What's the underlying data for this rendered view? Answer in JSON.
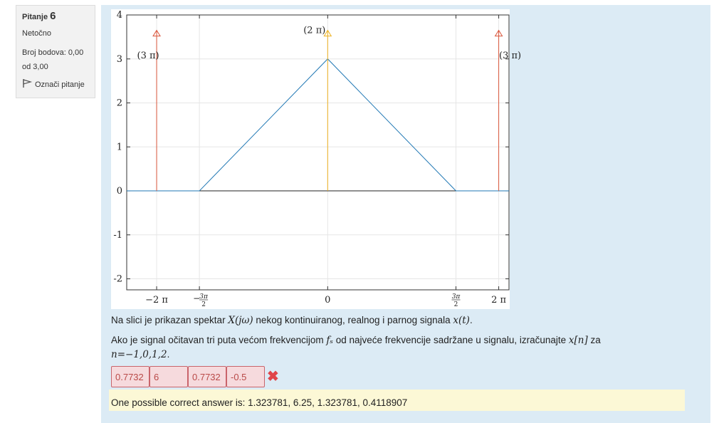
{
  "question_info": {
    "label": "Pitanje",
    "number": "6",
    "state": "Netočno",
    "grade_line1": "Broj bodova: 0,00",
    "grade_line2": "od 3,00",
    "flag_label": "Označi pitanje",
    "flag_icon": "flag-outline-icon"
  },
  "chart_data": {
    "type": "line",
    "xlim": [
      -2.35,
      2.12
    ],
    "ylim": [
      -2.25,
      4
    ],
    "y_ticks": [
      "4",
      "3",
      "2",
      "1",
      "0",
      "-1",
      "-2"
    ],
    "y_tick_values": [
      4,
      3,
      2,
      1,
      0,
      -1,
      -2
    ],
    "x_tick_labels": [
      "−2 π",
      "−3π/2",
      "0",
      "3π/2",
      "2 π"
    ],
    "x_tick_values": [
      -2,
      -1.5,
      0,
      1.5,
      2
    ],
    "grid": true,
    "series": [
      {
        "color": "#1f77b4",
        "x": [
          -2.35,
          -1.5,
          0,
          1.5,
          2.12
        ],
        "y": [
          0,
          0,
          3,
          0,
          0
        ]
      }
    ],
    "impulses": [
      {
        "x": -2,
        "label": "(3 π)",
        "color": "#d9553b",
        "height": 3.65
      },
      {
        "x": 0,
        "label": "(2 π)",
        "color": "#edb120",
        "height": 3.65
      },
      {
        "x": 2,
        "label": "(3 π)",
        "color": "#d9553b",
        "height": 3.65
      }
    ]
  },
  "question": {
    "line1_a": "Na slici je prikazan spektar ",
    "line1_math1": "X(jω)",
    "line1_b": " nekog kontinuiranog, realnog i parnog signala ",
    "line1_math2": "x(t)",
    "line1_c": ".",
    "line2_a": "Ako je signal očitavan tri puta većom frekvencijom ",
    "line2_math1": "fₛ",
    "line2_b": " od najveće frekvencije sadržane u signalu, izračunajte ",
    "line2_math2": "x[n]",
    "line2_c": " za",
    "line3_math": "n=−1,0,1,2",
    "line3_c": "."
  },
  "answers": {
    "values": [
      "0.7732",
      "6",
      "0.7732",
      "-0.5"
    ],
    "status_icon": "cross-icon",
    "status_symbol": "✖",
    "status_color": "#e0454a"
  },
  "feedback": {
    "text": "One possible correct answer is: 1.323781, 6.25, 1.323781, 0.4118907"
  }
}
